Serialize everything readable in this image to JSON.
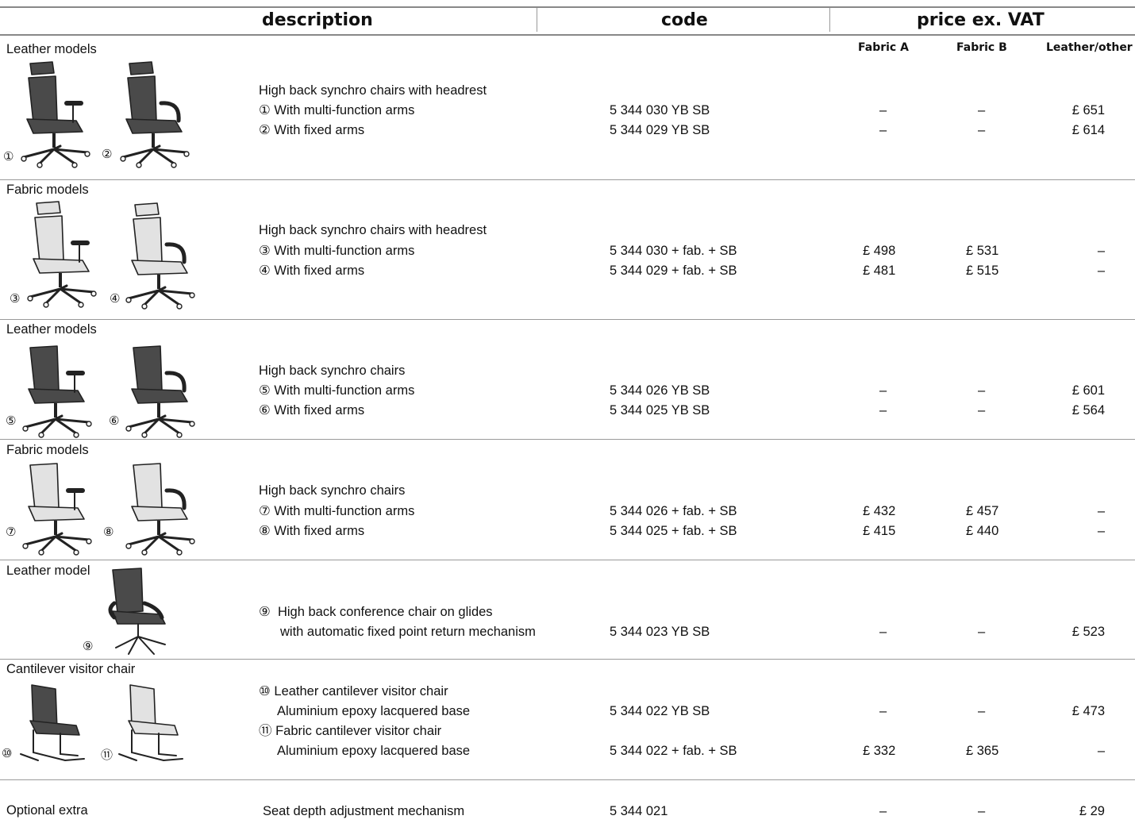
{
  "header": {
    "description": "description",
    "code": "code",
    "price": "price ex. VAT",
    "fabric_a": "Fabric A",
    "fabric_b": "Fabric B",
    "leather_other": "Leather/other"
  },
  "sections": [
    {
      "category": "Leather models",
      "title": "High back synchro chairs with headrest",
      "chair_tone": "dark",
      "chair_style": "headrest",
      "items": [
        {
          "num": "①",
          "label": "With multi-function arms",
          "code": "5 344 030 YB SB",
          "fabric_a": "–",
          "fabric_b": "–",
          "leather": "£ 651"
        },
        {
          "num": "②",
          "label": "With fixed arms",
          "code": "5 344 029 YB SB",
          "fabric_a": "–",
          "fabric_b": "–",
          "leather": "£ 614"
        }
      ]
    },
    {
      "category": "Fabric models",
      "title": "High back synchro chairs with headrest",
      "chair_tone": "light",
      "chair_style": "headrest",
      "items": [
        {
          "num": "③",
          "label": "With multi-function arms",
          "code": "5 344 030 + fab. + SB",
          "fabric_a": "£ 498",
          "fabric_b": "£ 531",
          "leather": "–"
        },
        {
          "num": "④",
          "label": "With fixed arms",
          "code": "5 344 029 + fab. + SB",
          "fabric_a": "£ 481",
          "fabric_b": "£ 515",
          "leather": "–"
        }
      ]
    },
    {
      "category": "Leather models",
      "title": "High back synchro chairs",
      "chair_tone": "dark",
      "chair_style": "plain",
      "items": [
        {
          "num": "⑤",
          "label": "With multi-function arms",
          "code": "5 344 026 YB SB",
          "fabric_a": "–",
          "fabric_b": "–",
          "leather": "£ 601"
        },
        {
          "num": "⑥",
          "label": "With fixed arms",
          "code": "5 344 025 YB SB",
          "fabric_a": "–",
          "fabric_b": "–",
          "leather": "£ 564"
        }
      ]
    },
    {
      "category": "Fabric models",
      "title": "High back synchro chairs",
      "chair_tone": "light",
      "chair_style": "plain",
      "items": [
        {
          "num": "⑦",
          "label": "With multi-function arms",
          "code": "5 344 026 + fab. + SB",
          "fabric_a": "£ 432",
          "fabric_b": "£ 457",
          "leather": "–"
        },
        {
          "num": "⑧",
          "label": "With fixed arms",
          "code": "5 344 025 + fab. + SB",
          "fabric_a": "£ 415",
          "fabric_b": "£ 440",
          "leather": "–"
        }
      ]
    }
  ],
  "conference": {
    "category": "Leather model",
    "num": "⑨",
    "line1": "High back conference chair on glides",
    "line2": "with automatic fixed point return mechanism",
    "code": "5 344 023 YB SB",
    "fabric_a": "–",
    "fabric_b": "–",
    "leather": "£ 523"
  },
  "cantilever": {
    "category": "Cantilever visitor chair",
    "items": [
      {
        "num": "⑩",
        "line1": "Leather cantilever visitor chair",
        "line2": "Aluminium epoxy lacquered base",
        "code": "5 344 022 YB SB",
        "fabric_a": "–",
        "fabric_b": "–",
        "leather": "£ 473"
      },
      {
        "num": "⑪",
        "line1": "Fabric cantilever visitor chair",
        "line2": "Aluminium epoxy lacquered base",
        "code": "5 344 022 + fab. + SB",
        "fabric_a": "£ 332",
        "fabric_b": "£ 365",
        "leather": "–"
      }
    ]
  },
  "optional": {
    "category": "Optional extra",
    "label": "Seat depth adjustment mechanism",
    "code": "5 344 021",
    "fabric_a": "–",
    "fabric_b": "–",
    "leather": "£ 29"
  },
  "colors": {
    "dark_chair": "#4a4a4a",
    "light_chair": "#e2e2e2",
    "rule": "#9a9a9a"
  }
}
